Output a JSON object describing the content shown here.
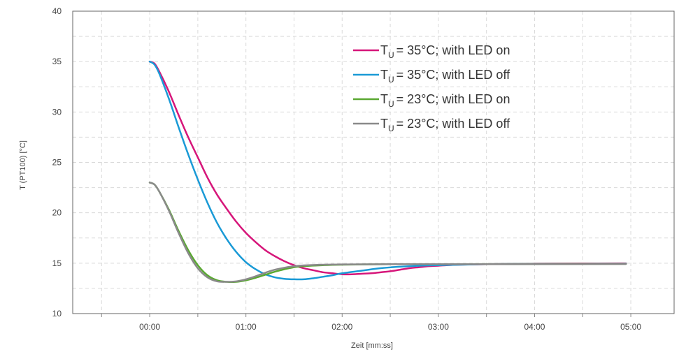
{
  "chart_data": {
    "type": "line",
    "xlabel": "Zeit [mm:ss]",
    "ylabel": "T (PT100) [°C]",
    "xlim": [
      -0.8,
      5.45
    ],
    "ylim": [
      10,
      40
    ],
    "x_ticks": [
      0,
      1,
      2,
      3,
      4,
      5
    ],
    "x_tick_labels": [
      "00:00",
      "01:00",
      "02:00",
      "03:00",
      "04:00",
      "05:00"
    ],
    "y_ticks": [
      10,
      15,
      20,
      25,
      30,
      35,
      40
    ],
    "grid": true,
    "legend_position": "top-right",
    "series": [
      {
        "name": "T U = 35°C; with LED on",
        "legend_main": "T",
        "legend_sub": "U",
        "legend_rest": "= 35°C; with LED on",
        "color": "#d6167a",
        "points": [
          [
            0,
            35
          ],
          [
            0.05,
            34.8
          ],
          [
            0.1,
            34.0
          ],
          [
            0.2,
            32.0
          ],
          [
            0.3,
            29.7
          ],
          [
            0.4,
            27.5
          ],
          [
            0.5,
            25.5
          ],
          [
            0.6,
            23.5
          ],
          [
            0.7,
            21.8
          ],
          [
            0.8,
            20.4
          ],
          [
            0.9,
            19.1
          ],
          [
            1.0,
            18.0
          ],
          [
            1.1,
            17.1
          ],
          [
            1.2,
            16.3
          ],
          [
            1.3,
            15.7
          ],
          [
            1.4,
            15.2
          ],
          [
            1.5,
            14.8
          ],
          [
            1.6,
            14.5
          ],
          [
            1.7,
            14.3
          ],
          [
            1.8,
            14.1
          ],
          [
            1.9,
            14.0
          ],
          [
            2.0,
            13.9
          ],
          [
            2.1,
            13.9
          ],
          [
            2.2,
            13.95
          ],
          [
            2.3,
            14.0
          ],
          [
            2.4,
            14.1
          ],
          [
            2.5,
            14.2
          ],
          [
            2.6,
            14.35
          ],
          [
            2.7,
            14.5
          ],
          [
            2.8,
            14.6
          ],
          [
            2.9,
            14.7
          ],
          [
            3.0,
            14.75
          ],
          [
            3.2,
            14.85
          ],
          [
            3.5,
            14.9
          ],
          [
            4.0,
            14.95
          ],
          [
            4.5,
            14.97
          ],
          [
            4.95,
            14.98
          ]
        ]
      },
      {
        "name": "T U = 35°C; with LED off",
        "legend_main": "T",
        "legend_sub": "U",
        "legend_rest": "= 35°C; with LED off",
        "color": "#1a9ad6",
        "points": [
          [
            0,
            35
          ],
          [
            0.05,
            34.7
          ],
          [
            0.1,
            33.8
          ],
          [
            0.2,
            31.3
          ],
          [
            0.3,
            28.5
          ],
          [
            0.4,
            25.8
          ],
          [
            0.5,
            23.3
          ],
          [
            0.6,
            21.0
          ],
          [
            0.7,
            19.0
          ],
          [
            0.8,
            17.4
          ],
          [
            0.9,
            16.1
          ],
          [
            1.0,
            15.1
          ],
          [
            1.1,
            14.4
          ],
          [
            1.2,
            13.9
          ],
          [
            1.3,
            13.6
          ],
          [
            1.4,
            13.45
          ],
          [
            1.5,
            13.4
          ],
          [
            1.6,
            13.4
          ],
          [
            1.7,
            13.5
          ],
          [
            1.8,
            13.65
          ],
          [
            1.9,
            13.8
          ],
          [
            2.0,
            14.0
          ],
          [
            2.2,
            14.25
          ],
          [
            2.4,
            14.5
          ],
          [
            2.6,
            14.65
          ],
          [
            2.8,
            14.75
          ],
          [
            3.0,
            14.8
          ],
          [
            3.5,
            14.9
          ],
          [
            4.0,
            14.93
          ],
          [
            4.5,
            14.94
          ],
          [
            4.95,
            14.95
          ]
        ]
      },
      {
        "name": "T U = 23°C; with LED on",
        "legend_main": "T",
        "legend_sub": "U",
        "legend_rest": "= 23°C; with LED on",
        "color": "#5aa832",
        "points": [
          [
            0,
            23
          ],
          [
            0.05,
            22.8
          ],
          [
            0.1,
            22.1
          ],
          [
            0.2,
            20.3
          ],
          [
            0.3,
            18.2
          ],
          [
            0.4,
            16.3
          ],
          [
            0.5,
            14.8
          ],
          [
            0.6,
            13.8
          ],
          [
            0.7,
            13.3
          ],
          [
            0.8,
            13.15
          ],
          [
            0.9,
            13.15
          ],
          [
            1.0,
            13.3
          ],
          [
            1.1,
            13.55
          ],
          [
            1.2,
            13.85
          ],
          [
            1.3,
            14.15
          ],
          [
            1.4,
            14.4
          ],
          [
            1.5,
            14.6
          ],
          [
            1.6,
            14.7
          ],
          [
            1.8,
            14.8
          ],
          [
            2.0,
            14.85
          ],
          [
            2.5,
            14.9
          ],
          [
            3.0,
            14.9
          ],
          [
            4.0,
            14.92
          ],
          [
            4.95,
            14.93
          ]
        ]
      },
      {
        "name": "T U = 23°C; with LED off",
        "legend_main": "T",
        "legend_sub": "U",
        "legend_rest": "= 23°C; with LED off",
        "color": "#8a8a8a",
        "points": [
          [
            0,
            23
          ],
          [
            0.05,
            22.8
          ],
          [
            0.1,
            22.1
          ],
          [
            0.2,
            20.2
          ],
          [
            0.3,
            18.0
          ],
          [
            0.4,
            16.0
          ],
          [
            0.5,
            14.5
          ],
          [
            0.6,
            13.6
          ],
          [
            0.7,
            13.2
          ],
          [
            0.8,
            13.15
          ],
          [
            0.9,
            13.2
          ],
          [
            1.0,
            13.4
          ],
          [
            1.1,
            13.7
          ],
          [
            1.2,
            14.05
          ],
          [
            1.3,
            14.35
          ],
          [
            1.4,
            14.55
          ],
          [
            1.5,
            14.7
          ],
          [
            1.6,
            14.78
          ],
          [
            1.8,
            14.85
          ],
          [
            2.0,
            14.88
          ],
          [
            2.5,
            14.9
          ],
          [
            3.0,
            14.9
          ],
          [
            4.0,
            14.91
          ],
          [
            4.95,
            14.92
          ]
        ]
      }
    ]
  }
}
